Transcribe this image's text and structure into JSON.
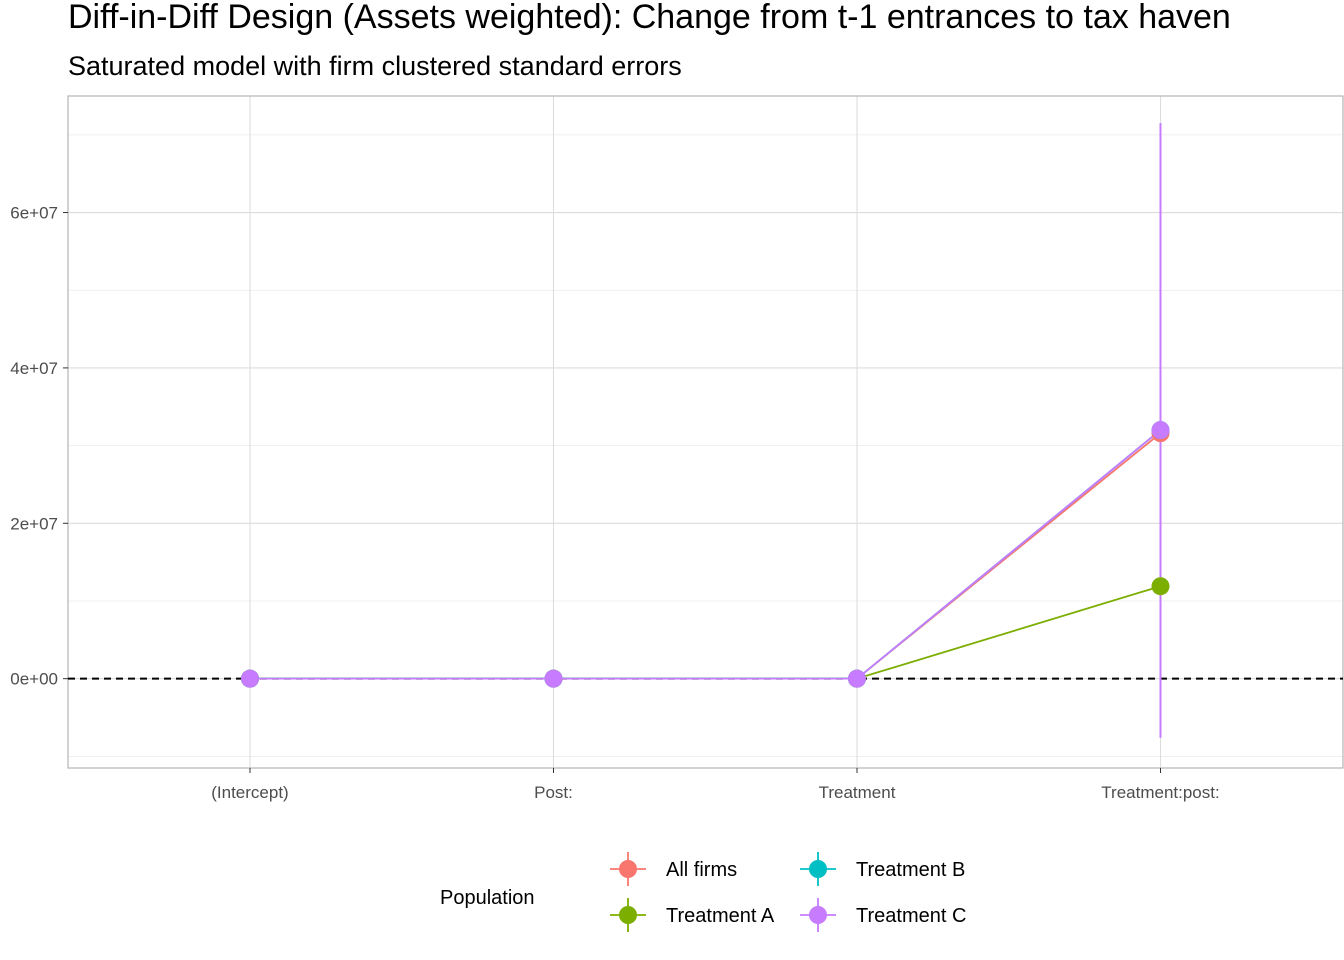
{
  "chart_data": {
    "type": "line",
    "title": "Diff-in-Diff Design (Assets weighted): Change from t-1 entrances to tax haven",
    "subtitle": "Saturated model with firm clustered standard errors",
    "xlabel": "",
    "ylabel": "",
    "categories": [
      "(Intercept)",
      "Post:",
      "Treatment",
      "Treatment:post:"
    ],
    "ylim": [
      -11500000,
      75000000
    ],
    "y_ticks": [
      0,
      20000000,
      40000000,
      60000000
    ],
    "y_tick_labels": [
      "0e+00",
      "2e+07",
      "4e+07",
      "6e+07"
    ],
    "reference_line": {
      "y": 0,
      "style": "dashed"
    },
    "grid": true,
    "legend": {
      "title": "Population",
      "position": "bottom"
    },
    "series": [
      {
        "name": "All firms",
        "color": "#F8766D",
        "values": [
          0,
          0,
          0,
          31600000
        ],
        "lower": [
          0,
          0,
          0,
          -7500000
        ],
        "upper": [
          0,
          0,
          0,
          71000000
        ]
      },
      {
        "name": "Treatment A",
        "color": "#7CAE00",
        "values": [
          0,
          0,
          0,
          11900000
        ],
        "lower": [
          0,
          0,
          0,
          11900000
        ],
        "upper": [
          0,
          0,
          0,
          11900000
        ]
      },
      {
        "name": "Treatment B",
        "color": "#00BFC4",
        "values": [
          0,
          0,
          0,
          32000000
        ],
        "lower": [
          0,
          0,
          0,
          -7500000
        ],
        "upper": [
          0,
          0,
          0,
          71500000
        ]
      },
      {
        "name": "Treatment C",
        "color": "#C77CFF",
        "values": [
          0,
          0,
          0,
          32000000
        ],
        "lower": [
          0,
          0,
          0,
          -7600000
        ],
        "upper": [
          0,
          0,
          0,
          71500000
        ]
      }
    ]
  }
}
